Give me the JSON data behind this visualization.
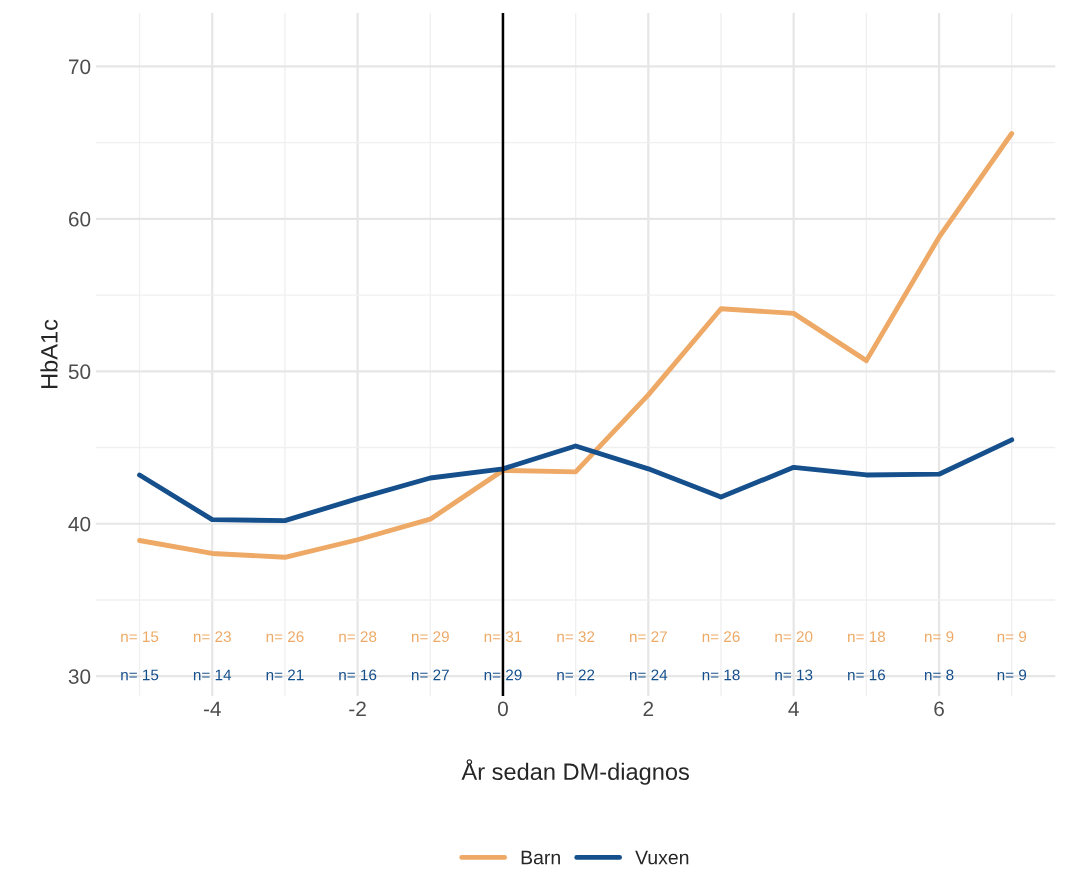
{
  "chart_data": {
    "type": "line",
    "xlabel": "År sedan DM-diagnos",
    "ylabel": "HbA1c",
    "x": [
      -5,
      -4,
      -3,
      -2,
      -1,
      0,
      1,
      2,
      3,
      4,
      5,
      6,
      7
    ],
    "series": [
      {
        "name": "Barn",
        "color": "#eda965",
        "values": [
          38.9,
          38.05,
          37.8,
          38.95,
          40.3,
          43.5,
          43.4,
          48.45,
          54.1,
          53.8,
          50.7,
          58.8,
          65.6
        ]
      },
      {
        "name": "Vuxen",
        "color": "#154f8c",
        "values": [
          43.2,
          40.27,
          40.2,
          41.65,
          43.0,
          43.6,
          45.1,
          43.6,
          41.75,
          43.7,
          43.2,
          43.25,
          45.5
        ]
      }
    ],
    "annotations": [
      "n= 15",
      "n= 23",
      "n= 26",
      "n= 28",
      "n= 29",
      "n= 31",
      "n= 32",
      "n= 27",
      "n= 26",
      "n= 20",
      "n= 18",
      "n= 9",
      "n= 9",
      "n= 15",
      "n= 14",
      "n= 21",
      "n= 16",
      "n= 27",
      "n= 29",
      "n= 22",
      "n= 24",
      "n= 18",
      "n= 13",
      "n= 16",
      "n= 8",
      "n= 9"
    ],
    "ref_lines": [
      {
        "axis": "x",
        "value": 0,
        "color": "#000000"
      }
    ],
    "xlim": [
      -5.6,
      7.6
    ],
    "xticks": [
      -4,
      -2,
      0,
      2,
      4,
      6
    ],
    "ylim": [
      28.7,
      73.5
    ],
    "yticks": [
      30,
      40,
      50,
      60,
      70
    ],
    "grid": true,
    "legend": "bottom",
    "marker": "none",
    "line_style": "solid"
  }
}
